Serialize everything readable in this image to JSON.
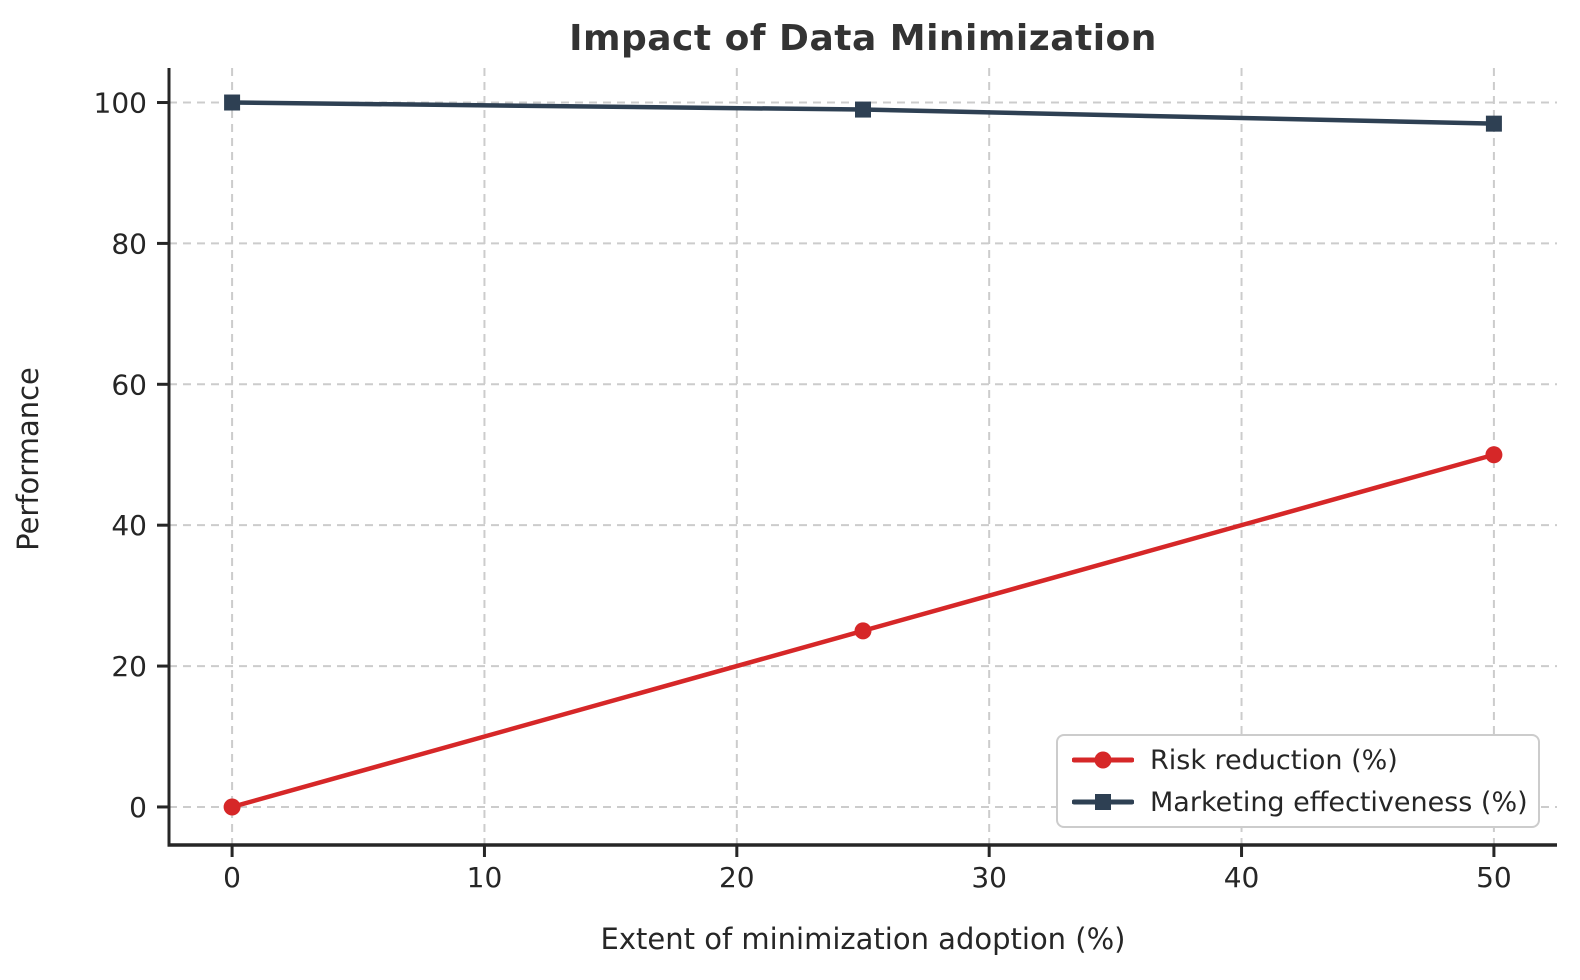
{
  "chart_data": {
    "type": "line",
    "title": "Impact of Data Minimization",
    "xlabel": "Extent of minimization adoption (%)",
    "ylabel": "Performance",
    "x": [
      0,
      25,
      50
    ],
    "series": [
      {
        "name": "Risk reduction (%)",
        "values": [
          0,
          25,
          50
        ],
        "color": "#d62728",
        "marker": "circle"
      },
      {
        "name": "Marketing effectiveness (%)",
        "values": [
          100,
          99,
          97
        ],
        "color": "#2e4053",
        "marker": "square"
      }
    ],
    "xticks": [
      0,
      10,
      20,
      30,
      40,
      50
    ],
    "yticks": [
      0,
      20,
      40,
      60,
      80,
      100
    ],
    "xlim": [
      -2.5,
      52.5
    ],
    "ylim": [
      -5.4,
      104.9
    ],
    "grid": true,
    "grid_style": "dashed",
    "legend_position": "lower right"
  },
  "colors": {
    "background": "#ffffff",
    "grid": "#cccccc",
    "axis": "#262626",
    "tick_text": "#262626",
    "title_text": "#333333",
    "legend_border": "#cccccc"
  }
}
